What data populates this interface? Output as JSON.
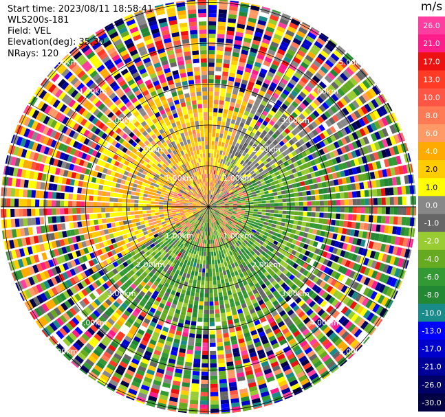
{
  "header": {
    "start_time": "Start time: 2023/08/11 18:58:41",
    "instrument": "WLS200s-181",
    "field": "Field: VEL",
    "elevation": "Elevation(deg): 35.30",
    "nrays": "NRays: 120"
  },
  "colorbar": {
    "unit": "m/s",
    "ticks": [
      "26.0",
      "21.0",
      "17.0",
      "13.0",
      "10.0",
      "8.0",
      "6.0",
      "4.0",
      "2.0",
      "1.0",
      "0.0",
      "-1.0",
      "-2.0",
      "-4.0",
      "-6.0",
      "-8.0",
      "-10.0",
      "-13.0",
      "-17.0",
      "-21.0",
      "-26.0",
      "-30.0"
    ],
    "colors": [
      "#ff3ea0",
      "#ff1d8a",
      "#ee1111",
      "#ff3a25",
      "#ff5544",
      "#ff7a55",
      "#ff9a66",
      "#ffaa00",
      "#ffcc00",
      "#ffff00",
      "#888888",
      "#666666",
      "#99cc33",
      "#66aa22",
      "#339933",
      "#228833",
      "#1a8b8b",
      "#0000ff",
      "#0000cc",
      "#000099",
      "#000066",
      "#000044"
    ]
  },
  "chart_data": {
    "type": "ppi-radar",
    "field": "VEL",
    "nrays": 120,
    "elevation_deg": 35.3,
    "range_rings_km": [
      1.0,
      2.0,
      3.0,
      4.0,
      5.0
    ],
    "ring_labels": [
      "1.00km",
      "2.00km",
      "3.00km",
      "4.00km",
      "5.00km"
    ],
    "value_range": [
      -30.0,
      26.0
    ]
  }
}
